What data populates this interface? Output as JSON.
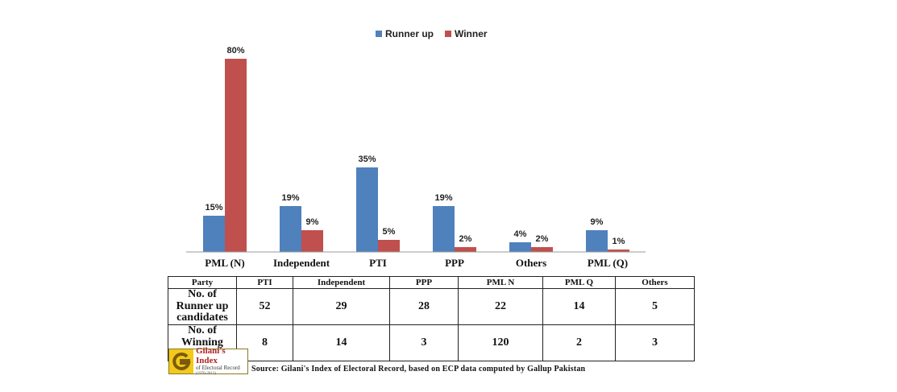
{
  "chart_data": {
    "type": "bar",
    "categories": [
      "PML (N)",
      "Independent",
      "PTI",
      "PPP",
      "Others",
      "PML (Q)"
    ],
    "series": [
      {
        "name": "Runner up",
        "values": [
          15,
          19,
          35,
          19,
          4,
          9
        ],
        "labels": [
          "15%",
          "19%",
          "35%",
          "19%",
          "4%",
          "9%"
        ],
        "color": "#4f81bd"
      },
      {
        "name": "Winner",
        "values": [
          80,
          9,
          5,
          2,
          2,
          1
        ],
        "labels": [
          "80%",
          "9%",
          "5%",
          "2%",
          "2%",
          "1%"
        ],
        "color": "#c0504d"
      }
    ],
    "ylim": [
      0,
      80
    ],
    "grid": false,
    "legend_position": "top"
  },
  "legend": {
    "runner_up": "Runner up",
    "winner": "Winner"
  },
  "table": {
    "headers": [
      "Party",
      "PTI",
      "Independent",
      "PPP",
      "PML N",
      "PML Q",
      "Others"
    ],
    "rows": [
      {
        "label": "No. of Runner up candidates",
        "values": [
          "52",
          "29",
          "28",
          "22",
          "14",
          "5"
        ]
      },
      {
        "label": "No. of Winning candidates",
        "values": [
          "8",
          "14",
          "3",
          "120",
          "2",
          "3"
        ]
      }
    ]
  },
  "logo": {
    "title": "Gilani's Index",
    "subtitle": "of Electoral Record",
    "years": "(1970-2013)",
    "icon": "g-logo-icon"
  },
  "source": "Source: Gilani's Index of Electoral Record, based on ECP data computed by Gallup Pakistan"
}
